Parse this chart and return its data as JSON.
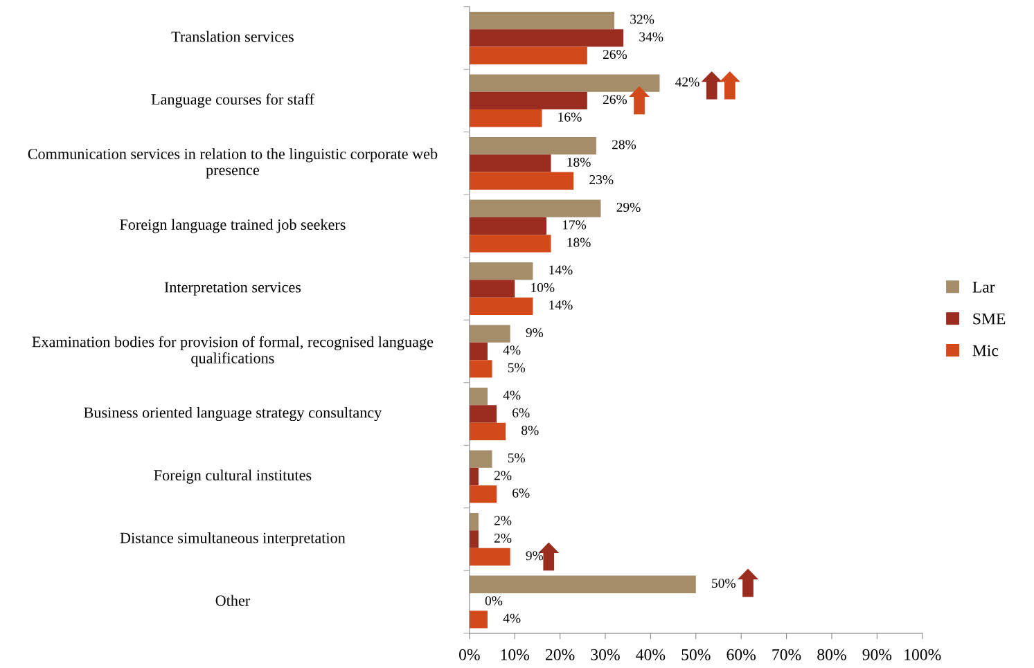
{
  "chart_data": {
    "type": "bar",
    "orientation": "horizontal",
    "categories": [
      "Translation services",
      "Language courses for staff",
      "Communication services in relation to the linguistic corporate web presence",
      "Foreign language trained job seekers",
      "Interpretation services",
      "Examination bodies for provision of formal, recognised language qualifications",
      "Business oriented language strategy consultancy",
      "Foreign cultural institutes",
      "Distance simultaneous interpretation",
      "Other"
    ],
    "series": [
      {
        "name": "Lar",
        "color": "#a58d6a",
        "values": [
          32,
          42,
          28,
          29,
          14,
          9,
          4,
          5,
          2,
          50
        ],
        "value_labels": [
          "32%",
          "42%",
          "28%",
          "29%",
          "14%",
          "9%",
          "4%",
          "5%",
          "2%",
          "50%"
        ]
      },
      {
        "name": "SME",
        "color": "#9b2d20",
        "values": [
          34,
          26,
          18,
          17,
          10,
          4,
          6,
          2,
          2,
          0
        ],
        "value_labels": [
          "34%",
          "26%",
          "18%",
          "17%",
          "10%",
          "4%",
          "6%",
          "2%",
          "2%",
          "0%"
        ]
      },
      {
        "name": "Mic",
        "color": "#d34a1a",
        "values": [
          26,
          16,
          23,
          18,
          14,
          5,
          8,
          6,
          9,
          4
        ],
        "value_labels": [
          "26%",
          "16%",
          "23%",
          "18%",
          "14%",
          "5%",
          "8%",
          "6%",
          "9%",
          "4%"
        ]
      }
    ],
    "xlim": [
      0,
      100
    ],
    "xticks": [
      {
        "value": 0,
        "label": "0%"
      },
      {
        "value": 10,
        "label": "10%"
      },
      {
        "value": 20,
        "label": "20%"
      },
      {
        "value": 30,
        "label": "30%"
      },
      {
        "value": 40,
        "label": "40%"
      },
      {
        "value": 50,
        "label": "50%"
      },
      {
        "value": 60,
        "label": "60%"
      },
      {
        "value": 70,
        "label": "70%"
      },
      {
        "value": 80,
        "label": "80%"
      },
      {
        "value": 90,
        "label": "90%"
      },
      {
        "value": 100,
        "label": "100%"
      }
    ],
    "grid": false,
    "legend": "right"
  }
}
